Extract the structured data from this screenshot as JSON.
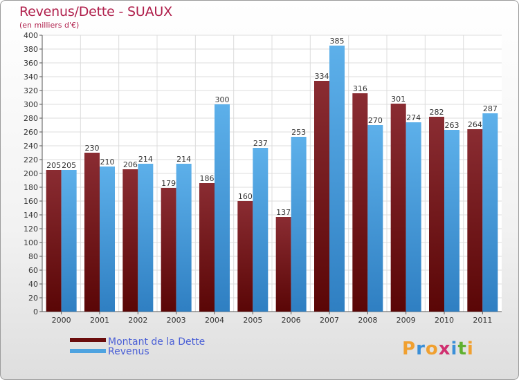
{
  "header": {
    "title": "Revenus/Dette - SUAUX",
    "subtitle": "(en milliers d'€)"
  },
  "legend": {
    "debt_label": "Montant de la Dette",
    "revenue_label": "Revenus"
  },
  "logo": {
    "letters": [
      "P",
      "r",
      "o",
      "x",
      "i",
      "t",
      "i"
    ],
    "colors": [
      "#f0a030",
      "#3a8fd8",
      "#f0a030",
      "#d03070",
      "#3a8fd8",
      "#60b030",
      "#f0a030"
    ]
  },
  "colors": {
    "debt": "#7a1a1a",
    "revenue": "#4ea3e0"
  },
  "chart_data": {
    "type": "bar",
    "categories": [
      "2000",
      "2001",
      "2002",
      "2003",
      "2004",
      "2005",
      "2006",
      "2007",
      "2008",
      "2009",
      "2010",
      "2011"
    ],
    "series": [
      {
        "name": "Montant de la Dette",
        "values": [
          205,
          230,
          206,
          179,
          186,
          160,
          137,
          334,
          316,
          301,
          282,
          264
        ]
      },
      {
        "name": "Revenus",
        "values": [
          205,
          210,
          214,
          214,
          300,
          237,
          253,
          385,
          270,
          274,
          263,
          287
        ]
      }
    ],
    "title": "Revenus/Dette - SUAUX",
    "subtitle": "(en milliers d'€)",
    "ylim": [
      0,
      400
    ],
    "ytick_step": 20,
    "grid": true,
    "legend_position": "bottom-left"
  }
}
